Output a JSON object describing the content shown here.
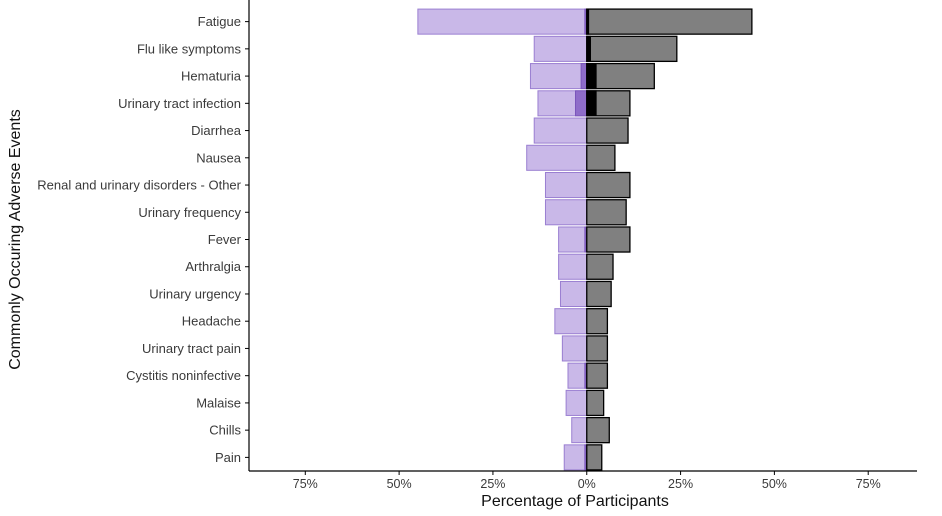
{
  "chart_data": {
    "type": "bar",
    "orientation": "horizontal-diverging",
    "ylabel": "Commonly Occuring Adverse Events",
    "xlabel": "Percentage of Participants",
    "xlim": [
      -90,
      88
    ],
    "x_ticks": [
      {
        "value": -75,
        "label": "75%"
      },
      {
        "value": -50,
        "label": "50%"
      },
      {
        "value": -25,
        "label": "25%"
      },
      {
        "value": 0,
        "label": "0%"
      },
      {
        "value": 25,
        "label": "25%"
      },
      {
        "value": 50,
        "label": "50%"
      },
      {
        "value": 75,
        "label": "75%"
      }
    ],
    "grid": false,
    "categories": [
      "Fatigue",
      "Flu like symptoms",
      "Hematuria",
      "Urinary tract infection",
      "Diarrhea",
      "Nausea",
      "Renal and urinary disorders - Other",
      "Urinary frequency",
      "Fever",
      "Arthralgia",
      "Urinary urgency",
      "Headache",
      "Urinary tract pain",
      "Cystitis noninfective",
      "Malaise",
      "Chills",
      "Pain"
    ],
    "series": [
      {
        "side": "left",
        "color": "#c9b8e8",
        "stroke": "#9a7fd1",
        "values": [
          45,
          14,
          15,
          13,
          14,
          16,
          11,
          11,
          7.5,
          7.5,
          7,
          8.5,
          6.5,
          5,
          5.5,
          4,
          6
        ]
      },
      {
        "side": "left-overlay",
        "color": "#8e6cc9",
        "stroke": "#7a55bb",
        "values": [
          0.5,
          0,
          1.5,
          3,
          0,
          0,
          0,
          0,
          0.5,
          0,
          0,
          0,
          0,
          0.5,
          0,
          0,
          0.5
        ]
      },
      {
        "side": "right",
        "color": "#808080",
        "stroke": "#000000",
        "values": [
          44,
          24,
          18,
          11.5,
          11,
          7.5,
          11.5,
          10.5,
          11.5,
          7,
          6.5,
          5.5,
          5.5,
          5.5,
          4.5,
          6,
          4
        ]
      },
      {
        "side": "right-overlay",
        "color": "#000000",
        "stroke": "#000000",
        "values": [
          0.5,
          1,
          2.5,
          2.5,
          0,
          0,
          0,
          0,
          0,
          0,
          0,
          0,
          0,
          0,
          0,
          0,
          0
        ]
      }
    ]
  }
}
